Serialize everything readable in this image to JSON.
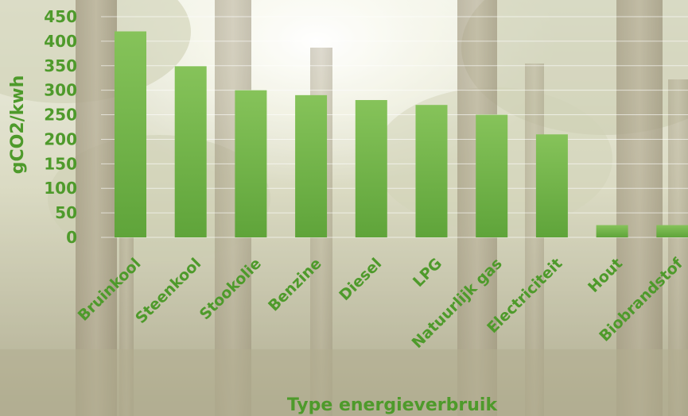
{
  "colors": {
    "bar_top": "#86C35A",
    "bar_bottom": "#5FA43A",
    "text": "#4E9A2B",
    "grid": "#FFFFFF"
  },
  "chart_data": {
    "type": "bar",
    "title": "",
    "xlabel": "Type energieverbruik",
    "ylabel": "gCO2/kwh",
    "ylim": [
      0,
      450
    ],
    "yticks": [
      0,
      50,
      100,
      150,
      200,
      250,
      300,
      350,
      400,
      450
    ],
    "grid": true,
    "categories": [
      "Bruinkool",
      "Steenkool",
      "Stookolie",
      "Benzine",
      "Diesel",
      "LPG",
      "Natuurlijk gas",
      "Electriciteit",
      "Hout",
      "Biobrandstof"
    ],
    "values": [
      420,
      349,
      300,
      290,
      280,
      270,
      250,
      210,
      25,
      25
    ]
  }
}
